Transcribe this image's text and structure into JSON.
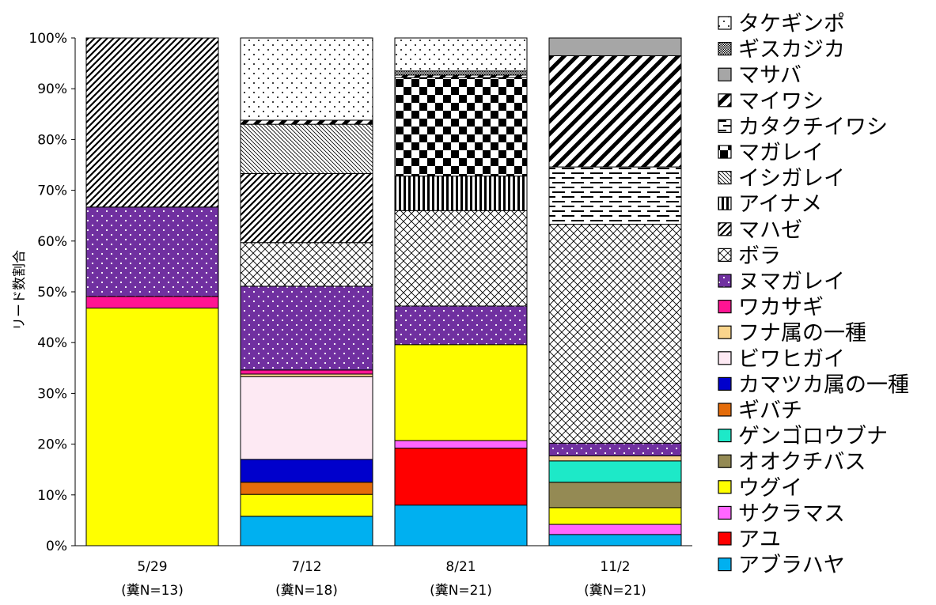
{
  "chart_data": {
    "type": "bar",
    "stacked": true,
    "percent": true,
    "ylabel": "リード数割合",
    "ylim": [
      0,
      100
    ],
    "yticks": [
      "0%",
      "10%",
      "20%",
      "30%",
      "40%",
      "50%",
      "60%",
      "70%",
      "80%",
      "90%",
      "100%"
    ],
    "categories": [
      {
        "date": "5/29",
        "note": "(糞N=13)"
      },
      {
        "date": "7/12",
        "note": "(糞N=18)"
      },
      {
        "date": "8/21",
        "note": "(糞N=21)"
      },
      {
        "date": "11/2",
        "note": "(糞N=21)"
      }
    ],
    "legend_position": "right",
    "series": [
      {
        "name": "アブラハヤ",
        "color": "#00b0f0",
        "pattern": "solid",
        "values": [
          0,
          5.8,
          8.0,
          2.2
        ]
      },
      {
        "name": "アユ",
        "color": "#ff0000",
        "pattern": "solid",
        "values": [
          0,
          0,
          11.2,
          0
        ]
      },
      {
        "name": "サクラマス",
        "color": "#ff66ff",
        "pattern": "solid",
        "values": [
          0,
          0,
          1.5,
          2.0
        ]
      },
      {
        "name": "ウグイ",
        "color": "#ffff00",
        "pattern": "solid",
        "values": [
          46.8,
          4.3,
          18.9,
          3.3
        ]
      },
      {
        "name": "オオクチバス",
        "color": "#948a54",
        "pattern": "solid",
        "values": [
          0,
          0,
          0,
          5.0
        ]
      },
      {
        "name": "ゲンゴロウブナ",
        "color": "#1de9c8",
        "pattern": "solid",
        "values": [
          0,
          0,
          0,
          4.2
        ]
      },
      {
        "name": "ギバチ",
        "color": "#e46c0a",
        "pattern": "solid",
        "values": [
          0,
          2.4,
          0,
          0
        ]
      },
      {
        "name": "カマツカ属の一種",
        "color": "#0000cc",
        "pattern": "solid",
        "values": [
          0,
          4.5,
          0,
          0
        ]
      },
      {
        "name": "ビワヒガイ",
        "color": "#fde9f3",
        "pattern": "solid",
        "values": [
          0,
          16.3,
          0,
          0
        ]
      },
      {
        "name": "フナ属の一種",
        "color": "#fad58c",
        "pattern": "solid",
        "values": [
          0,
          0.5,
          0,
          1.0
        ]
      },
      {
        "name": "ワカサギ",
        "color": "#ff1493",
        "pattern": "solid",
        "values": [
          2.3,
          0.8,
          0,
          0
        ]
      },
      {
        "name": "ヌマガレイ",
        "color": "#7030a0",
        "pattern": "dots",
        "values": [
          17.6,
          16.5,
          7.6,
          2.5
        ]
      },
      {
        "name": "ボラ",
        "color": "#ffffff",
        "pattern": "crosshatch",
        "values": [
          0,
          8.6,
          18.8,
          43.1
        ]
      },
      {
        "name": "マハゼ",
        "color": "#ffffff",
        "pattern": "diagonal",
        "values": [
          33.3,
          13.6,
          0,
          0
        ]
      },
      {
        "name": "アイナメ",
        "color": "#ffffff",
        "pattern": "vertical",
        "values": [
          0,
          0,
          6.8,
          0
        ]
      },
      {
        "name": "イシガレイ",
        "color": "#ffffff",
        "pattern": "fine-diagonal",
        "values": [
          0,
          9.7,
          0,
          0
        ]
      },
      {
        "name": "マガレイ",
        "color": "#ffffff",
        "pattern": "checker",
        "values": [
          0,
          0,
          19.4,
          0
        ]
      },
      {
        "name": "カタクチイワシ",
        "color": "#ffffff",
        "pattern": "dashes",
        "values": [
          0,
          0,
          0,
          11.3
        ]
      },
      {
        "name": "マイワシ",
        "color": "#ffffff",
        "pattern": "wide-diagonal",
        "values": [
          0,
          0.8,
          0.5,
          21.9
        ]
      },
      {
        "name": "マサバ",
        "color": "#a6a6a6",
        "pattern": "solid",
        "values": [
          0,
          0,
          0,
          3.5
        ]
      },
      {
        "name": "ギスカジカ",
        "color": "#ffffff",
        "pattern": "fine-check",
        "values": [
          0,
          0,
          0.8,
          0
        ]
      },
      {
        "name": "タケギンポ",
        "color": "#ffffff",
        "pattern": "sparse-dots",
        "values": [
          0,
          16.2,
          6.5,
          0
        ]
      }
    ]
  }
}
